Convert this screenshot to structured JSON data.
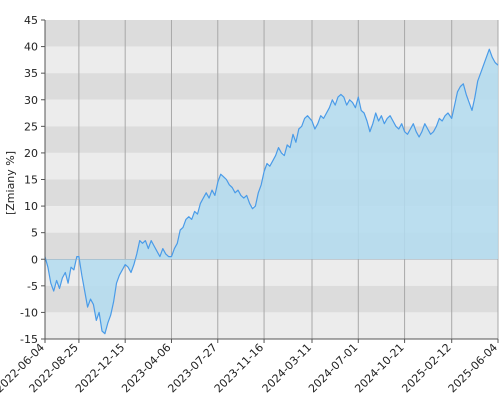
{
  "chart_data": {
    "type": "area",
    "ylabel": "[Zmiany %]",
    "ylim": [
      -15,
      45
    ],
    "y_ticks": [
      45,
      40,
      35,
      30,
      25,
      20,
      15,
      10,
      5,
      0,
      -5,
      -10,
      -15
    ],
    "x_ticks": [
      "2022-06-04",
      "2022-08-25",
      "2022-12-15",
      "2023-04-06",
      "2023-07-27",
      "2023-11-16",
      "2024-03-11",
      "2024-07-01",
      "2024-10-21",
      "2025-02-12",
      "2025-06-04"
    ],
    "grid": true,
    "x": [
      "2022-06-04",
      "2022-06-11",
      "2022-06-18",
      "2022-06-25",
      "2022-07-02",
      "2022-07-09",
      "2022-07-16",
      "2022-07-23",
      "2022-07-30",
      "2022-08-06",
      "2022-08-13",
      "2022-08-20",
      "2022-08-25",
      "2022-09-01",
      "2022-09-08",
      "2022-09-15",
      "2022-09-22",
      "2022-09-29",
      "2022-10-06",
      "2022-10-13",
      "2022-10-20",
      "2022-10-27",
      "2022-11-03",
      "2022-11-10",
      "2022-11-17",
      "2022-11-24",
      "2022-12-01",
      "2022-12-08",
      "2022-12-15",
      "2022-12-22",
      "2022-12-29",
      "2023-01-05",
      "2023-01-12",
      "2023-01-19",
      "2023-01-26",
      "2023-02-02",
      "2023-02-09",
      "2023-02-16",
      "2023-02-23",
      "2023-03-02",
      "2023-03-09",
      "2023-03-16",
      "2023-03-23",
      "2023-03-30",
      "2023-04-06",
      "2023-04-13",
      "2023-04-20",
      "2023-04-27",
      "2023-05-04",
      "2023-05-11",
      "2023-05-18",
      "2023-05-25",
      "2023-06-01",
      "2023-06-08",
      "2023-06-15",
      "2023-06-22",
      "2023-06-29",
      "2023-07-06",
      "2023-07-13",
      "2023-07-20",
      "2023-07-27",
      "2023-08-03",
      "2023-08-10",
      "2023-08-17",
      "2023-08-24",
      "2023-08-31",
      "2023-09-07",
      "2023-09-14",
      "2023-09-21",
      "2023-09-28",
      "2023-10-05",
      "2023-10-12",
      "2023-10-19",
      "2023-10-26",
      "2023-11-02",
      "2023-11-09",
      "2023-11-16",
      "2023-11-23",
      "2023-11-30",
      "2023-12-07",
      "2023-12-14",
      "2023-12-21",
      "2023-12-28",
      "2024-01-04",
      "2024-01-11",
      "2024-01-18",
      "2024-01-25",
      "2024-02-01",
      "2024-02-08",
      "2024-02-15",
      "2024-02-22",
      "2024-02-29",
      "2024-03-11",
      "2024-03-18",
      "2024-03-25",
      "2024-04-01",
      "2024-04-08",
      "2024-04-15",
      "2024-04-22",
      "2024-04-29",
      "2024-05-06",
      "2024-05-13",
      "2024-05-20",
      "2024-05-27",
      "2024-06-03",
      "2024-06-10",
      "2024-06-17",
      "2024-06-24",
      "2024-07-01",
      "2024-07-08",
      "2024-07-15",
      "2024-07-22",
      "2024-07-29",
      "2024-08-05",
      "2024-08-12",
      "2024-08-19",
      "2024-08-26",
      "2024-09-02",
      "2024-09-09",
      "2024-09-16",
      "2024-09-23",
      "2024-09-30",
      "2024-10-07",
      "2024-10-14",
      "2024-10-21",
      "2024-10-28",
      "2024-11-04",
      "2024-11-11",
      "2024-11-18",
      "2024-11-25",
      "2024-12-02",
      "2024-12-09",
      "2024-12-16",
      "2024-12-23",
      "2024-12-30",
      "2025-01-06",
      "2025-01-13",
      "2025-01-20",
      "2025-01-27",
      "2025-02-03",
      "2025-02-12",
      "2025-02-19",
      "2025-02-26",
      "2025-03-05",
      "2025-03-12",
      "2025-03-19",
      "2025-03-26",
      "2025-04-02",
      "2025-04-09",
      "2025-04-16",
      "2025-04-23",
      "2025-04-30",
      "2025-05-07",
      "2025-05-14",
      "2025-05-21",
      "2025-05-28",
      "2025-06-04"
    ],
    "series": [
      {
        "color": "#4a9be8",
        "fill": "#b3dcf0",
        "values": [
          0.5,
          -1.5,
          -4.5,
          -6.0,
          -4.0,
          -5.5,
          -3.5,
          -2.5,
          -4.5,
          -1.5,
          -2.0,
          0.5,
          0.5,
          -3.0,
          -6.0,
          -9.0,
          -7.5,
          -8.5,
          -11.5,
          -10.0,
          -13.5,
          -14.0,
          -12.0,
          -10.5,
          -8.0,
          -4.5,
          -3.0,
          -2.0,
          -1.0,
          -1.5,
          -2.5,
          -1.0,
          1.0,
          3.5,
          3.0,
          3.5,
          2.0,
          3.5,
          2.5,
          1.5,
          0.5,
          2.0,
          1.0,
          0.5,
          0.5,
          2.0,
          3.0,
          5.5,
          6.0,
          7.5,
          8.0,
          7.5,
          9.0,
          8.5,
          10.5,
          11.5,
          12.5,
          11.5,
          13.0,
          12.0,
          14.5,
          16.0,
          15.5,
          15.0,
          14.0,
          13.5,
          12.5,
          13.0,
          12.0,
          11.5,
          12.0,
          10.5,
          9.5,
          10.0,
          12.5,
          14.0,
          16.5,
          18.0,
          17.5,
          18.5,
          19.5,
          21.0,
          20.0,
          19.5,
          21.5,
          21.0,
          23.5,
          22.0,
          24.5,
          25.0,
          26.5,
          27.0,
          26.0,
          24.5,
          25.5,
          27.0,
          26.5,
          27.5,
          28.5,
          30.0,
          29.0,
          30.5,
          31.0,
          30.5,
          29.0,
          30.0,
          29.5,
          28.5,
          30.5,
          28.0,
          27.5,
          26.0,
          24.0,
          25.5,
          27.5,
          26.0,
          27.0,
          25.5,
          26.5,
          27.0,
          26.0,
          25.0,
          24.5,
          25.5,
          24.0,
          23.5,
          24.5,
          25.5,
          24.0,
          23.0,
          24.0,
          25.5,
          24.5,
          23.5,
          24.0,
          25.0,
          26.5,
          26.0,
          27.0,
          27.5,
          26.5,
          29.0,
          31.5,
          32.5,
          33.0,
          31.0,
          29.5,
          28.0,
          30.5,
          33.5,
          35.0,
          36.5,
          38.0,
          39.5,
          38.0,
          37.0,
          36.5
        ]
      }
    ]
  }
}
